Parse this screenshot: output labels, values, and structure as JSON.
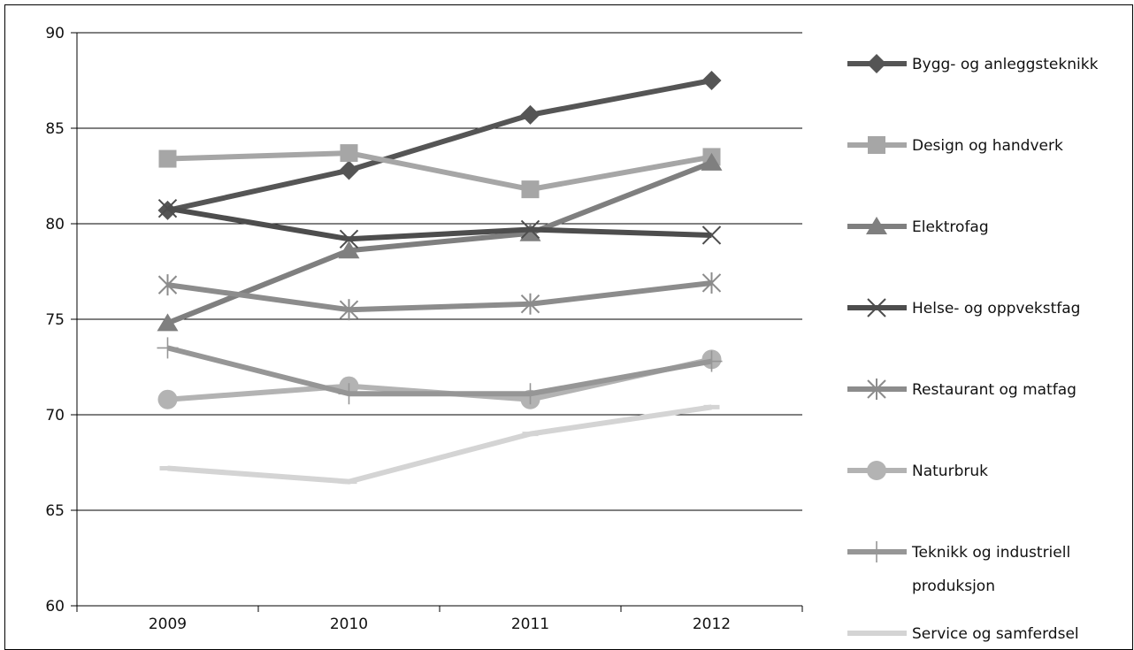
{
  "chart_data": {
    "type": "line",
    "title": "",
    "xlabel": "",
    "ylabel": "",
    "categories": [
      "2009",
      "2010",
      "2011",
      "2012"
    ],
    "ylim": [
      60,
      90
    ],
    "yticks": [
      60,
      65,
      70,
      75,
      80,
      85,
      90
    ],
    "grid": "horizontal",
    "legend_position": "right",
    "series": [
      {
        "name": "Bygg- og anleggsteknikk",
        "values": [
          80.7,
          82.8,
          85.7,
          87.5
        ],
        "color": "#555555",
        "marker": "diamond"
      },
      {
        "name": "Design og handverk",
        "values": [
          83.4,
          83.7,
          81.8,
          83.5
        ],
        "color": "#a6a6a6",
        "marker": "square"
      },
      {
        "name": "Elektrofag",
        "values": [
          74.8,
          78.6,
          79.5,
          83.2
        ],
        "color": "#7f7f7f",
        "marker": "triangle"
      },
      {
        "name": "Helse- og oppvekstfag",
        "values": [
          80.8,
          79.2,
          79.7,
          79.4
        ],
        "color": "#4d4d4d",
        "marker": "x"
      },
      {
        "name": "Restaurant og matfag",
        "values": [
          76.8,
          75.5,
          75.8,
          76.9
        ],
        "color": "#8c8c8c",
        "marker": "star"
      },
      {
        "name": "Naturbruk",
        "values": [
          70.8,
          71.5,
          70.8,
          72.9
        ],
        "color": "#b3b3b3",
        "marker": "circle"
      },
      {
        "name": [
          "Teknikk og industriell",
          "produksjon"
        ],
        "values": [
          73.5,
          71.1,
          71.1,
          72.8
        ],
        "color": "#969696",
        "marker": "plus"
      },
      {
        "name": "Service og samferdsel",
        "values": [
          67.2,
          66.5,
          69.0,
          70.4
        ],
        "color": "#d4d4d4",
        "marker": "dash"
      }
    ]
  }
}
